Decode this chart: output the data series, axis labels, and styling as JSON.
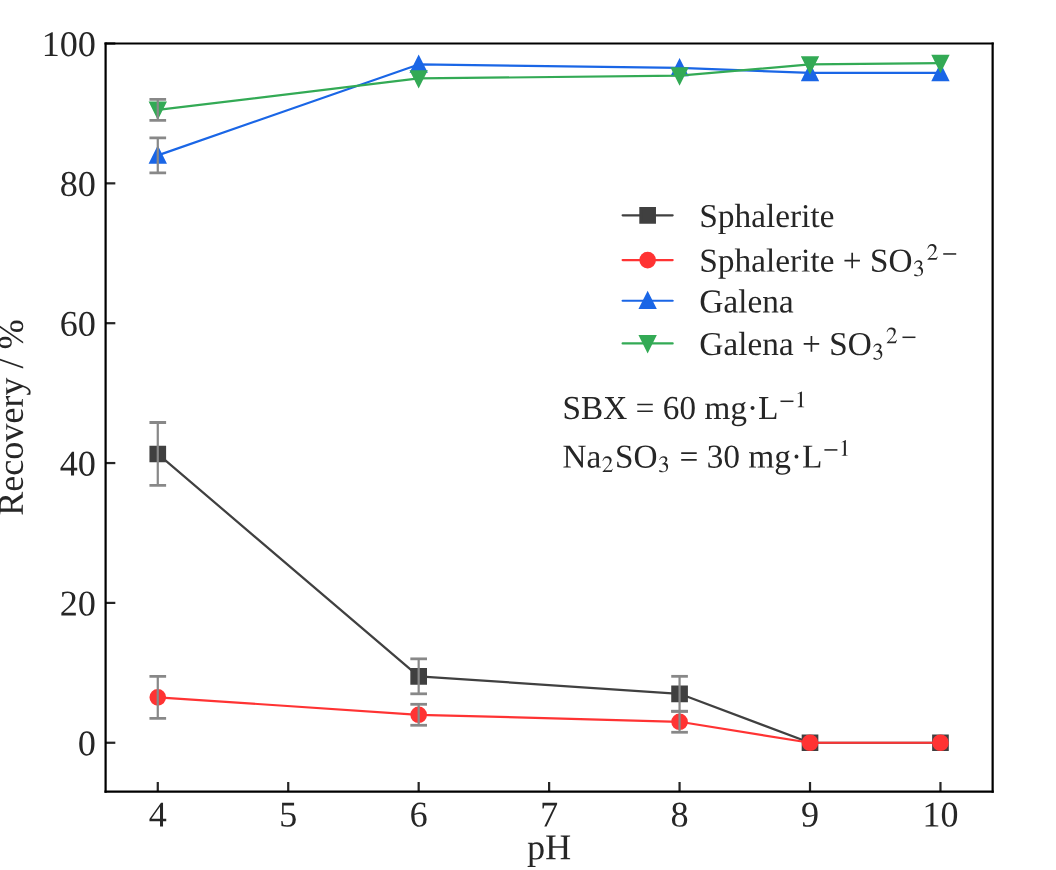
{
  "chart_data": {
    "type": "line",
    "xlabel": "pH",
    "ylabel": "Recovery / %",
    "x": [
      4,
      6,
      8,
      9,
      10
    ],
    "series": [
      {
        "name": "Sphalerite",
        "color": "#404040",
        "marker": "square",
        "values": [
          41.3,
          9.5,
          7,
          0,
          0
        ],
        "errors": [
          4.5,
          2.5,
          2.5,
          null,
          null
        ]
      },
      {
        "name": "Sphalerite + SO$_{3}$$^{2−}$",
        "color": "#ff3333",
        "marker": "circle",
        "values": [
          6.5,
          4,
          3,
          0,
          0
        ],
        "errors": [
          3,
          1.5,
          1.5,
          null,
          null
        ]
      },
      {
        "name": "Galena",
        "color": "#1a66e6",
        "marker": "triangle",
        "values": [
          84,
          97,
          96.5,
          95.8,
          95.8
        ],
        "errors": [
          2.5,
          null,
          null,
          null,
          null
        ]
      },
      {
        "name": "Galena + SO$_{3}$$^{2−}$",
        "color": "#33aa55",
        "marker": "triangle_down",
        "values": [
          90.5,
          95,
          95.4,
          97,
          97.2
        ],
        "errors": [
          1.5,
          null,
          null,
          null,
          null
        ]
      }
    ],
    "annotations": [
      "SBX = 60 mg·L$^{−1}$",
      "Na$_{2}$SO$_{3}$ = 30 mg·L$^{−1}$"
    ],
    "xlim": [
      3.6,
      10.4
    ],
    "xticks": [
      4,
      5,
      6,
      7,
      8,
      9,
      10
    ],
    "ylim": [
      -7,
      100
    ],
    "yticks": [
      0,
      20,
      40,
      60,
      80,
      100
    ],
    "grid": false,
    "legend": "right",
    "line_style": "solid"
  }
}
